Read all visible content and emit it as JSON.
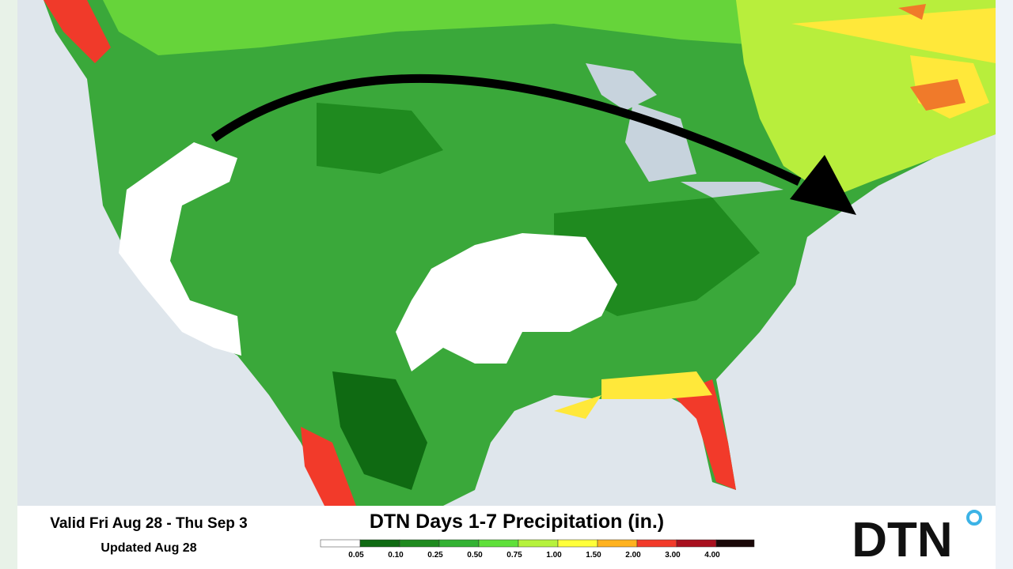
{
  "footer": {
    "valid": "Valid Fri Aug 28 - Thu Sep 3",
    "updated": "Updated Aug 28",
    "title": "DTN Days 1-7 Precipitation (in.)"
  },
  "legend": {
    "labels": [
      "0.05",
      "0.10",
      "0.25",
      "0.50",
      "0.75",
      "1.00",
      "1.50",
      "2.00",
      "3.00",
      "4.00"
    ],
    "colors": [
      "#ffffff",
      "#0f6a12",
      "#1f8a1f",
      "#33b233",
      "#5fe03a",
      "#b6f23c",
      "#ffff3a",
      "#ffb21f",
      "#f23a2a",
      "#a8101e",
      "#1a0808"
    ]
  },
  "logo": "DTN"
}
